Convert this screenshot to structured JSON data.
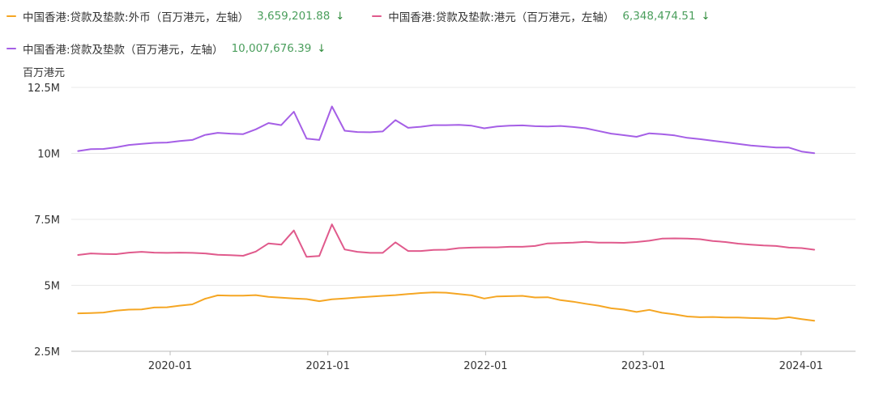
{
  "legend": {
    "items": [
      {
        "name": "中国香港:贷款及垫款:外币（百万港元，左轴）",
        "value": "3,659,201.88",
        "trend": "↓",
        "color": "#f5a623",
        "value_color": "#4a9e5c"
      },
      {
        "name": "中国香港:贷款及垫款:港元（百万港元，左轴）",
        "value": "6,348,474.51",
        "trend": "↓",
        "color": "#e05a8c",
        "value_color": "#4a9e5c"
      },
      {
        "name": "中国香港:贷款及垫款（百万港元，左轴）",
        "value": "10,007,676.39",
        "trend": "↓",
        "color": "#a55fe6",
        "value_color": "#4a9e5c"
      }
    ]
  },
  "chart_data": {
    "type": "line",
    "ylabel": "百万港元",
    "ylim": [
      2500000,
      12500000
    ],
    "y_ticks": [
      2500000,
      5000000,
      7500000,
      10000000,
      12500000
    ],
    "y_tick_labels": [
      "2.5M",
      "5M",
      "7.5M",
      "10M",
      "12.5M"
    ],
    "x_tick_labels": [
      "2020-01",
      "2021-01",
      "2022-01",
      "2023-01",
      "2024-01"
    ],
    "x_start": "2019-06",
    "x_end": "2024-02",
    "grid": true,
    "legend_position": "top-left",
    "series": [
      {
        "name": "中国香港:贷款及垫款:外币（百万港元，左轴）",
        "color": "#f5a623",
        "values": [
          3940000,
          3950000,
          3970000,
          4040000,
          4080000,
          4090000,
          4160000,
          4170000,
          4230000,
          4280000,
          4490000,
          4620000,
          4610000,
          4610000,
          4630000,
          4560000,
          4530000,
          4500000,
          4480000,
          4400000,
          4470000,
          4500000,
          4540000,
          4570000,
          4600000,
          4630000,
          4670000,
          4710000,
          4730000,
          4720000,
          4670000,
          4620000,
          4500000,
          4580000,
          4590000,
          4600000,
          4540000,
          4550000,
          4440000,
          4380000,
          4300000,
          4230000,
          4130000,
          4080000,
          3990000,
          4070000,
          3960000,
          3900000,
          3820000,
          3790000,
          3800000,
          3780000,
          3780000,
          3760000,
          3750000,
          3730000,
          3790000,
          3720000,
          3659201.88
        ]
      },
      {
        "name": "中国香港:贷款及垫款:港元（百万港元，左轴）",
        "color": "#e05a8c",
        "values": [
          6150000,
          6210000,
          6190000,
          6180000,
          6240000,
          6270000,
          6240000,
          6230000,
          6240000,
          6230000,
          6210000,
          6160000,
          6140000,
          6120000,
          6280000,
          6590000,
          6540000,
          7080000,
          6080000,
          6110000,
          7310000,
          6360000,
          6270000,
          6230000,
          6230000,
          6630000,
          6300000,
          6300000,
          6340000,
          6350000,
          6410000,
          6430000,
          6440000,
          6440000,
          6460000,
          6460000,
          6490000,
          6590000,
          6600000,
          6620000,
          6650000,
          6620000,
          6620000,
          6610000,
          6640000,
          6690000,
          6770000,
          6780000,
          6770000,
          6750000,
          6680000,
          6640000,
          6580000,
          6540000,
          6510000,
          6490000,
          6430000,
          6410000,
          6348474.51
        ]
      },
      {
        "name": "中国香港:贷款及垫款（百万港元，左轴）",
        "color": "#a55fe6",
        "values": [
          10090000,
          10160000,
          10170000,
          10230000,
          10320000,
          10360000,
          10400000,
          10410000,
          10470000,
          10510000,
          10700000,
          10780000,
          10750000,
          10730000,
          10910000,
          11150000,
          11070000,
          11580000,
          10560000,
          10510000,
          11780000,
          10860000,
          10810000,
          10800000,
          10830000,
          11260000,
          10970000,
          11010000,
          11070000,
          11070000,
          11080000,
          11050000,
          10950000,
          11020000,
          11050000,
          11060000,
          11030000,
          11020000,
          11040000,
          11000000,
          10950000,
          10850000,
          10750000,
          10690000,
          10630000,
          10760000,
          10730000,
          10680000,
          10590000,
          10540000,
          10480000,
          10420000,
          10360000,
          10300000,
          10260000,
          10220000,
          10220000,
          10070000,
          10007676.39
        ]
      }
    ]
  }
}
